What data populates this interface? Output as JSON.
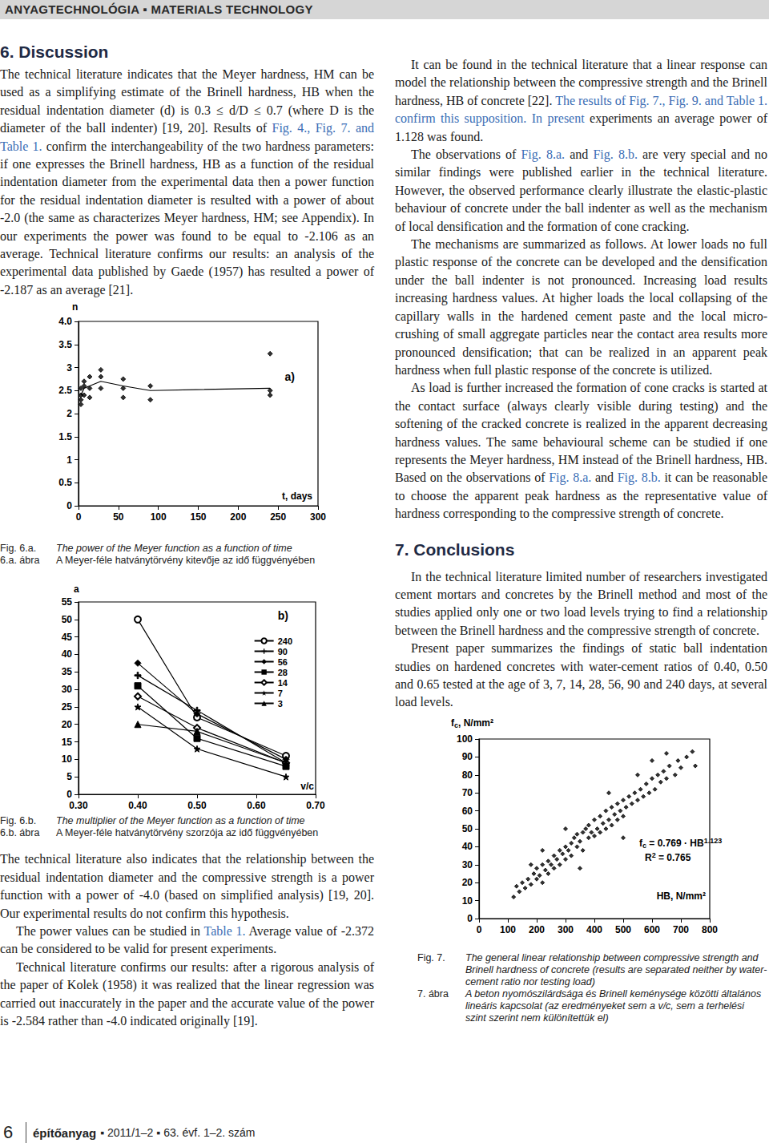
{
  "header": "ANYAGTECHNOLÓGIA ▪ MATERIALS TECHNOLOGY",
  "columns": [
    [
      {
        "kind": "heading",
        "text": "6. Discussion"
      },
      {
        "kind": "paragraph",
        "segments": [
          "The technical literature indicates that the Meyer hardness, HM can be used as a simplifying estimate of the Brinell hardness, HB when the residual indentation diameter (d) is 0.3 ≤ d/D ≤ 0.7 (where D is the diameter of the ball indenter) [19, 20]. Results of ",
          {
            "link": "Fig. 4., Fig. 7. and Table 1."
          },
          " confirm the interchangeability of the two hardness parameters: if one expresses the Brinell hardness, HB as a function of the residual indentation diameter from the experimental data then a power function for the residual indentation diameter is resulted with a power of about -2.0 (the same as characterizes Meyer hardness, HM; see Appendix). In our experiments the power was found to be equal to -2.106 as an average. Technical literature confirms our results: an analysis of the experimental data published by Gaede (1957) has resulted a power of -2.187 as an average [21]."
        ]
      },
      {
        "kind": "figure",
        "chart": 0,
        "caption": {
          "en_label": "Fig. 6.a.",
          "en_text": "The power of the Meyer function as a function of time",
          "hu_label": "6.a. ábra",
          "hu_text": "A Meyer-féle hatványtörvény kitevője az idő függvényében"
        }
      },
      {
        "kind": "figure",
        "chart": 1,
        "caption": {
          "en_label": "Fig. 6.b.",
          "en_text": "The multiplier of the Meyer function as a function of time",
          "hu_label": "6.b. ábra",
          "hu_text": "A Meyer-féle hatványtörvény szorzója az idő függvényében"
        }
      },
      {
        "kind": "paragraph",
        "segments": [
          "The technical literature also indicates that the relationship between the residual indentation diameter and the compressive strength is a power function with a power of -4.0 (based on simplified analysis) [19, 20]. Our experimental results do not confirm this hypothesis."
        ]
      },
      {
        "kind": "paragraph",
        "segments": [
          "The power values can be studied in ",
          {
            "link": "Table 1."
          },
          " Average value of -2.372 can be considered to be valid for present experiments."
        ]
      },
      {
        "kind": "paragraph",
        "segments": [
          "Technical literature confirms our results: after a rigorous analysis of the paper of Kolek (1958) it was realized that the linear regression was carried out inaccurately in the paper and the accurate value of the power is -2.584 rather than -4.0 indicated originally [19]."
        ]
      }
    ],
    [
      {
        "kind": "paragraph",
        "segments": [
          "It can be found in the technical literature that a linear response can model the relationship between the compressive strength and the Brinell hardness, HB of concrete [22]. ",
          {
            "link": "The results of Fig. 7., Fig. 9. and Table 1. confirm this supposition. In present"
          },
          " experiments an average power of 1.128 was found."
        ]
      },
      {
        "kind": "paragraph",
        "segments": [
          "The observations of ",
          {
            "link": "Fig. 8.a."
          },
          " and ",
          {
            "link": "Fig. 8.b."
          },
          " are very special and no similar findings were published earlier in the technical literature. However, the observed performance clearly illustrate the elastic-plastic behaviour of concrete under the ball indenter as well as the mechanism of local densification and the formation of cone cracking."
        ]
      },
      {
        "kind": "paragraph",
        "segments": [
          "The mechanisms are summarized as follows. At lower loads no full plastic response of the concrete can be developed and the densification under the ball indenter is not pronounced. Increasing load results increasing hardness values. At higher loads the local collapsing of the capillary walls in the hardened cement paste and the local micro-crushing of small aggregate particles near the contact area results more pronounced densification; that can be realized in an apparent peak hardness when full plastic response of the concrete is utilized."
        ]
      },
      {
        "kind": "paragraph",
        "segments": [
          "As load is further increased the formation of cone cracks is started at the contact surface (always clearly visible during testing) and the softening of the cracked concrete is realized in the apparent decreasing hardness values. The same behavioural scheme can be studied if one represents the Meyer hardness, HM instead of the Brinell hardness, HB. Based on the observations of ",
          {
            "link": "Fig. 8.a."
          },
          " and ",
          {
            "link": "Fig. 8.b."
          },
          " it can be reasonable to choose the apparent peak hardness as the representative value of hardness corresponding to the compressive strength of concrete."
        ]
      },
      {
        "kind": "heading",
        "text": "7. Conclusions"
      },
      {
        "kind": "paragraph",
        "segments": [
          "In the technical literature limited number of researchers investigated cement mortars and concretes by the Brinell method and most of the studies applied only one or two load levels trying to find a relationship between the Brinell hardness and the compressive strength of concrete."
        ]
      },
      {
        "kind": "paragraph",
        "segments": [
          "Present paper summarizes the findings of static ball indentation studies on hardened concretes with water-cement ratios of 0.40, 0.50 and 0.65 tested at the age of 3, 7, 14, 28, 56, 90 and 240 days, at several load levels."
        ]
      },
      {
        "kind": "figure",
        "chart": 2,
        "caption": {
          "en_label": "Fig. 7.",
          "en_text": "The general linear relationship between compressive strength and Brinell hardness of concrete (results are separated neither by water-cement ratio nor testing load)",
          "hu_label": "7. ábra",
          "hu_text": "A beton nyomószilárdsága és Brinell keménysége közötti általános lineáris kapcsolat (az eredményeket sem a v/c, sem a terhelési szint szerint nem különítettük el)"
        }
      }
    ]
  ],
  "footer": {
    "page": "6",
    "journal": "építőanyag",
    "issue": "▪ 2011/1–2 ▪ 63. évf. 1–2. szám"
  },
  "chart_data": [
    {
      "type": "scatter",
      "annotation": "a)",
      "x_label": [
        {
          "t": "t, days"
        }
      ],
      "y_label": [
        {
          "t": "n"
        }
      ],
      "xlim": [
        0,
        300
      ],
      "xticks": [
        0,
        50,
        100,
        150,
        200,
        250,
        300
      ],
      "ylim": [
        0,
        4
      ],
      "yticks": [
        0,
        0.5,
        1,
        1.5,
        2,
        2.5,
        3,
        3.5,
        {
          "value": 4,
          "label": "4.0"
        }
      ],
      "grid": false,
      "series": [
        {
          "type": "scatter",
          "marker": "diamond",
          "color": "#000000",
          "values": [
            [
              3,
              2.2
            ],
            [
              3,
              2.3
            ],
            [
              3,
              2.4
            ],
            [
              3,
              2.55
            ],
            [
              7,
              2.4
            ],
            [
              7,
              2.6
            ],
            [
              7,
              2.7
            ],
            [
              14,
              2.35
            ],
            [
              14,
              2.55
            ],
            [
              14,
              2.8
            ],
            [
              28,
              2.55
            ],
            [
              28,
              2.8
            ],
            [
              28,
              2.95
            ],
            [
              56,
              2.35
            ],
            [
              56,
              2.55
            ],
            [
              56,
              2.75
            ],
            [
              90,
              2.3
            ],
            [
              90,
              2.6
            ],
            [
              240,
              2.4
            ],
            [
              240,
              2.5
            ],
            [
              240,
              3.3
            ]
          ]
        },
        {
          "type": "line",
          "marker": "none",
          "color": "#000000",
          "values": [
            [
              3,
              2.4
            ],
            [
              7,
              2.55
            ],
            [
              14,
              2.6
            ],
            [
              28,
              2.7
            ],
            [
              56,
              2.6
            ],
            [
              90,
              2.5
            ],
            [
              240,
              2.55
            ]
          ]
        }
      ]
    },
    {
      "type": "line",
      "annotation": "b)",
      "x_label": [
        {
          "t": "v/c"
        }
      ],
      "y_label": [
        {
          "t": "a"
        }
      ],
      "xlim": [
        0.3,
        0.7
      ],
      "xticks": [
        {
          "value": 0.3,
          "label": "0.30"
        },
        {
          "value": 0.4,
          "label": "0.40"
        },
        {
          "value": 0.5,
          "label": "0.50"
        },
        {
          "value": 0.6,
          "label": "0.60"
        },
        {
          "value": 0.7,
          "label": "0.70"
        }
      ],
      "ylim": [
        0,
        55
      ],
      "yticks": [
        0,
        5,
        10,
        15,
        20,
        25,
        30,
        35,
        40,
        45,
        50,
        55
      ],
      "grid": false,
      "legend": "upper right",
      "series": [
        {
          "name": "240",
          "marker": "open_circle",
          "color": "#000000",
          "values": [
            [
              0.4,
              50
            ],
            [
              0.5,
              22
            ],
            [
              0.65,
              11
            ]
          ]
        },
        {
          "name": "90",
          "marker": "plus",
          "color": "#000000",
          "values": [
            [
              0.4,
              34
            ],
            [
              0.5,
              24
            ],
            [
              0.65,
              9
            ]
          ]
        },
        {
          "name": "56",
          "marker": "diamond",
          "color": "#000000",
          "values": [
            [
              0.4,
              37.5
            ],
            [
              0.5,
              23
            ],
            [
              0.65,
              10
            ]
          ]
        },
        {
          "name": "28",
          "marker": "square",
          "color": "#000000",
          "values": [
            [
              0.4,
              31
            ],
            [
              0.5,
              16
            ],
            [
              0.65,
              8
            ]
          ]
        },
        {
          "name": "14",
          "marker": "open_diamond",
          "color": "#000000",
          "values": [
            [
              0.4,
              28
            ],
            [
              0.5,
              19
            ],
            [
              0.65,
              9
            ]
          ]
        },
        {
          "name": "7",
          "marker": "star",
          "color": "#000000",
          "values": [
            [
              0.4,
              25
            ],
            [
              0.5,
              13
            ],
            [
              0.65,
              5
            ]
          ]
        },
        {
          "name": "3",
          "marker": "triangle",
          "color": "#000000",
          "values": [
            [
              0.4,
              20
            ],
            [
              0.5,
              18
            ],
            [
              0.65,
              9
            ]
          ]
        }
      ]
    },
    {
      "type": "scatter",
      "x_label": [
        {
          "t": "HB, N/mm²"
        }
      ],
      "y_label": [
        {
          "t": "f"
        },
        {
          "t": "c",
          "sub": true
        },
        {
          "t": ", N/mm²"
        }
      ],
      "formula": [
        [
          {
            "t": "f"
          },
          {
            "t": "c",
            "sub": true
          },
          {
            "t": " = 0.769 · HB"
          },
          {
            "t": "1.123",
            "sup": true
          }
        ],
        [
          {
            "t": "R"
          },
          {
            "t": "2",
            "sup": true
          },
          {
            "t": " = 0.765"
          }
        ]
      ],
      "xlim": [
        0,
        800
      ],
      "xticks": [
        0,
        100,
        200,
        300,
        400,
        500,
        600,
        700,
        800
      ],
      "ylim": [
        0,
        100
      ],
      "yticks": [
        0,
        10,
        20,
        30,
        40,
        50,
        60,
        70,
        80,
        90,
        100
      ],
      "grid": false,
      "series": [
        {
          "marker": "diamond",
          "color": "#000000",
          "values": [
            [
              120,
              12
            ],
            [
              130,
              18
            ],
            [
              140,
              15
            ],
            [
              150,
              20
            ],
            [
              160,
              17
            ],
            [
              170,
              22
            ],
            [
              180,
              19
            ],
            [
              190,
              25
            ],
            [
              200,
              22
            ],
            [
              200,
              28
            ],
            [
              210,
              24
            ],
            [
              220,
              30
            ],
            [
              220,
              20
            ],
            [
              230,
              27
            ],
            [
              240,
              32
            ],
            [
              240,
              25
            ],
            [
              250,
              30
            ],
            [
              260,
              35
            ],
            [
              260,
              28
            ],
            [
              270,
              33
            ],
            [
              280,
              38
            ],
            [
              280,
              30
            ],
            [
              290,
              36
            ],
            [
              300,
              40
            ],
            [
              300,
              33
            ],
            [
              310,
              38
            ],
            [
              320,
              42
            ],
            [
              320,
              35
            ],
            [
              330,
              45
            ],
            [
              340,
              40
            ],
            [
              340,
              47
            ],
            [
              350,
              43
            ],
            [
              360,
              48
            ],
            [
              360,
              38
            ],
            [
              370,
              50
            ],
            [
              380,
              45
            ],
            [
              380,
              52
            ],
            [
              390,
              48
            ],
            [
              400,
              55
            ],
            [
              400,
              46
            ],
            [
              410,
              50
            ],
            [
              420,
              57
            ],
            [
              420,
              48
            ],
            [
              430,
              53
            ],
            [
              440,
              60
            ],
            [
              440,
              50
            ],
            [
              450,
              55
            ],
            [
              460,
              62
            ],
            [
              460,
              52
            ],
            [
              470,
              58
            ],
            [
              480,
              64
            ],
            [
              480,
              55
            ],
            [
              490,
              60
            ],
            [
              500,
              66
            ],
            [
              500,
              57
            ],
            [
              510,
              62
            ],
            [
              520,
              68
            ],
            [
              530,
              64
            ],
            [
              540,
              70
            ],
            [
              550,
              66
            ],
            [
              560,
              72
            ],
            [
              570,
              68
            ],
            [
              580,
              75
            ],
            [
              590,
              70
            ],
            [
              600,
              78
            ],
            [
              610,
              72
            ],
            [
              620,
              80
            ],
            [
              630,
              76
            ],
            [
              640,
              82
            ],
            [
              650,
              78
            ],
            [
              660,
              85
            ],
            [
              680,
              80
            ],
            [
              690,
              88
            ],
            [
              700,
              84
            ],
            [
              720,
              90
            ],
            [
              740,
              93
            ],
            [
              220,
              38
            ],
            [
              300,
              50
            ],
            [
              450,
              70
            ],
            [
              550,
              80
            ],
            [
              600,
              88
            ],
            [
              350,
              28
            ],
            [
              500,
              45
            ],
            [
              180,
              30
            ],
            [
              650,
              92
            ],
            [
              750,
              85
            ]
          ]
        }
      ]
    }
  ]
}
